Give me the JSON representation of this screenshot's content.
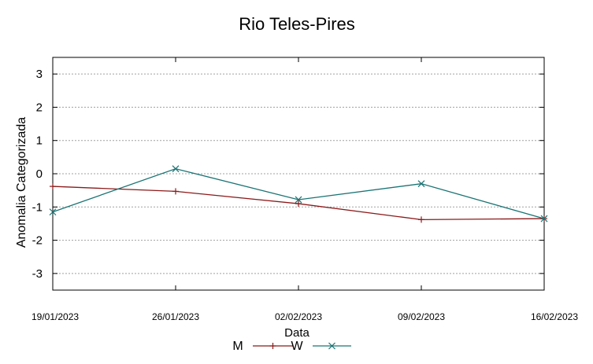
{
  "chart_data": {
    "type": "line",
    "title": "Rio Teles-Pires",
    "xlabel": "Data",
    "ylabel": "Anomalia Categorizada",
    "x": [
      "19/01/2023",
      "26/01/2023",
      "02/02/2023",
      "09/02/2023",
      "16/02/2023"
    ],
    "ylim": [
      -3.5,
      3.5
    ],
    "yticks": [
      "-3",
      "-2",
      "-1",
      "0",
      "1",
      "2",
      "3"
    ],
    "grid": true,
    "legend": "bottom-center",
    "series": [
      {
        "name": "M",
        "color": "#8b1a1a",
        "marker": "plus",
        "values": [
          -0.38,
          -0.53,
          -0.9,
          -1.38,
          -1.35
        ]
      },
      {
        "name": "W",
        "color": "#1a7374",
        "marker": "cross",
        "values": [
          -1.15,
          0.15,
          -0.78,
          -0.3,
          -1.35
        ]
      }
    ]
  }
}
